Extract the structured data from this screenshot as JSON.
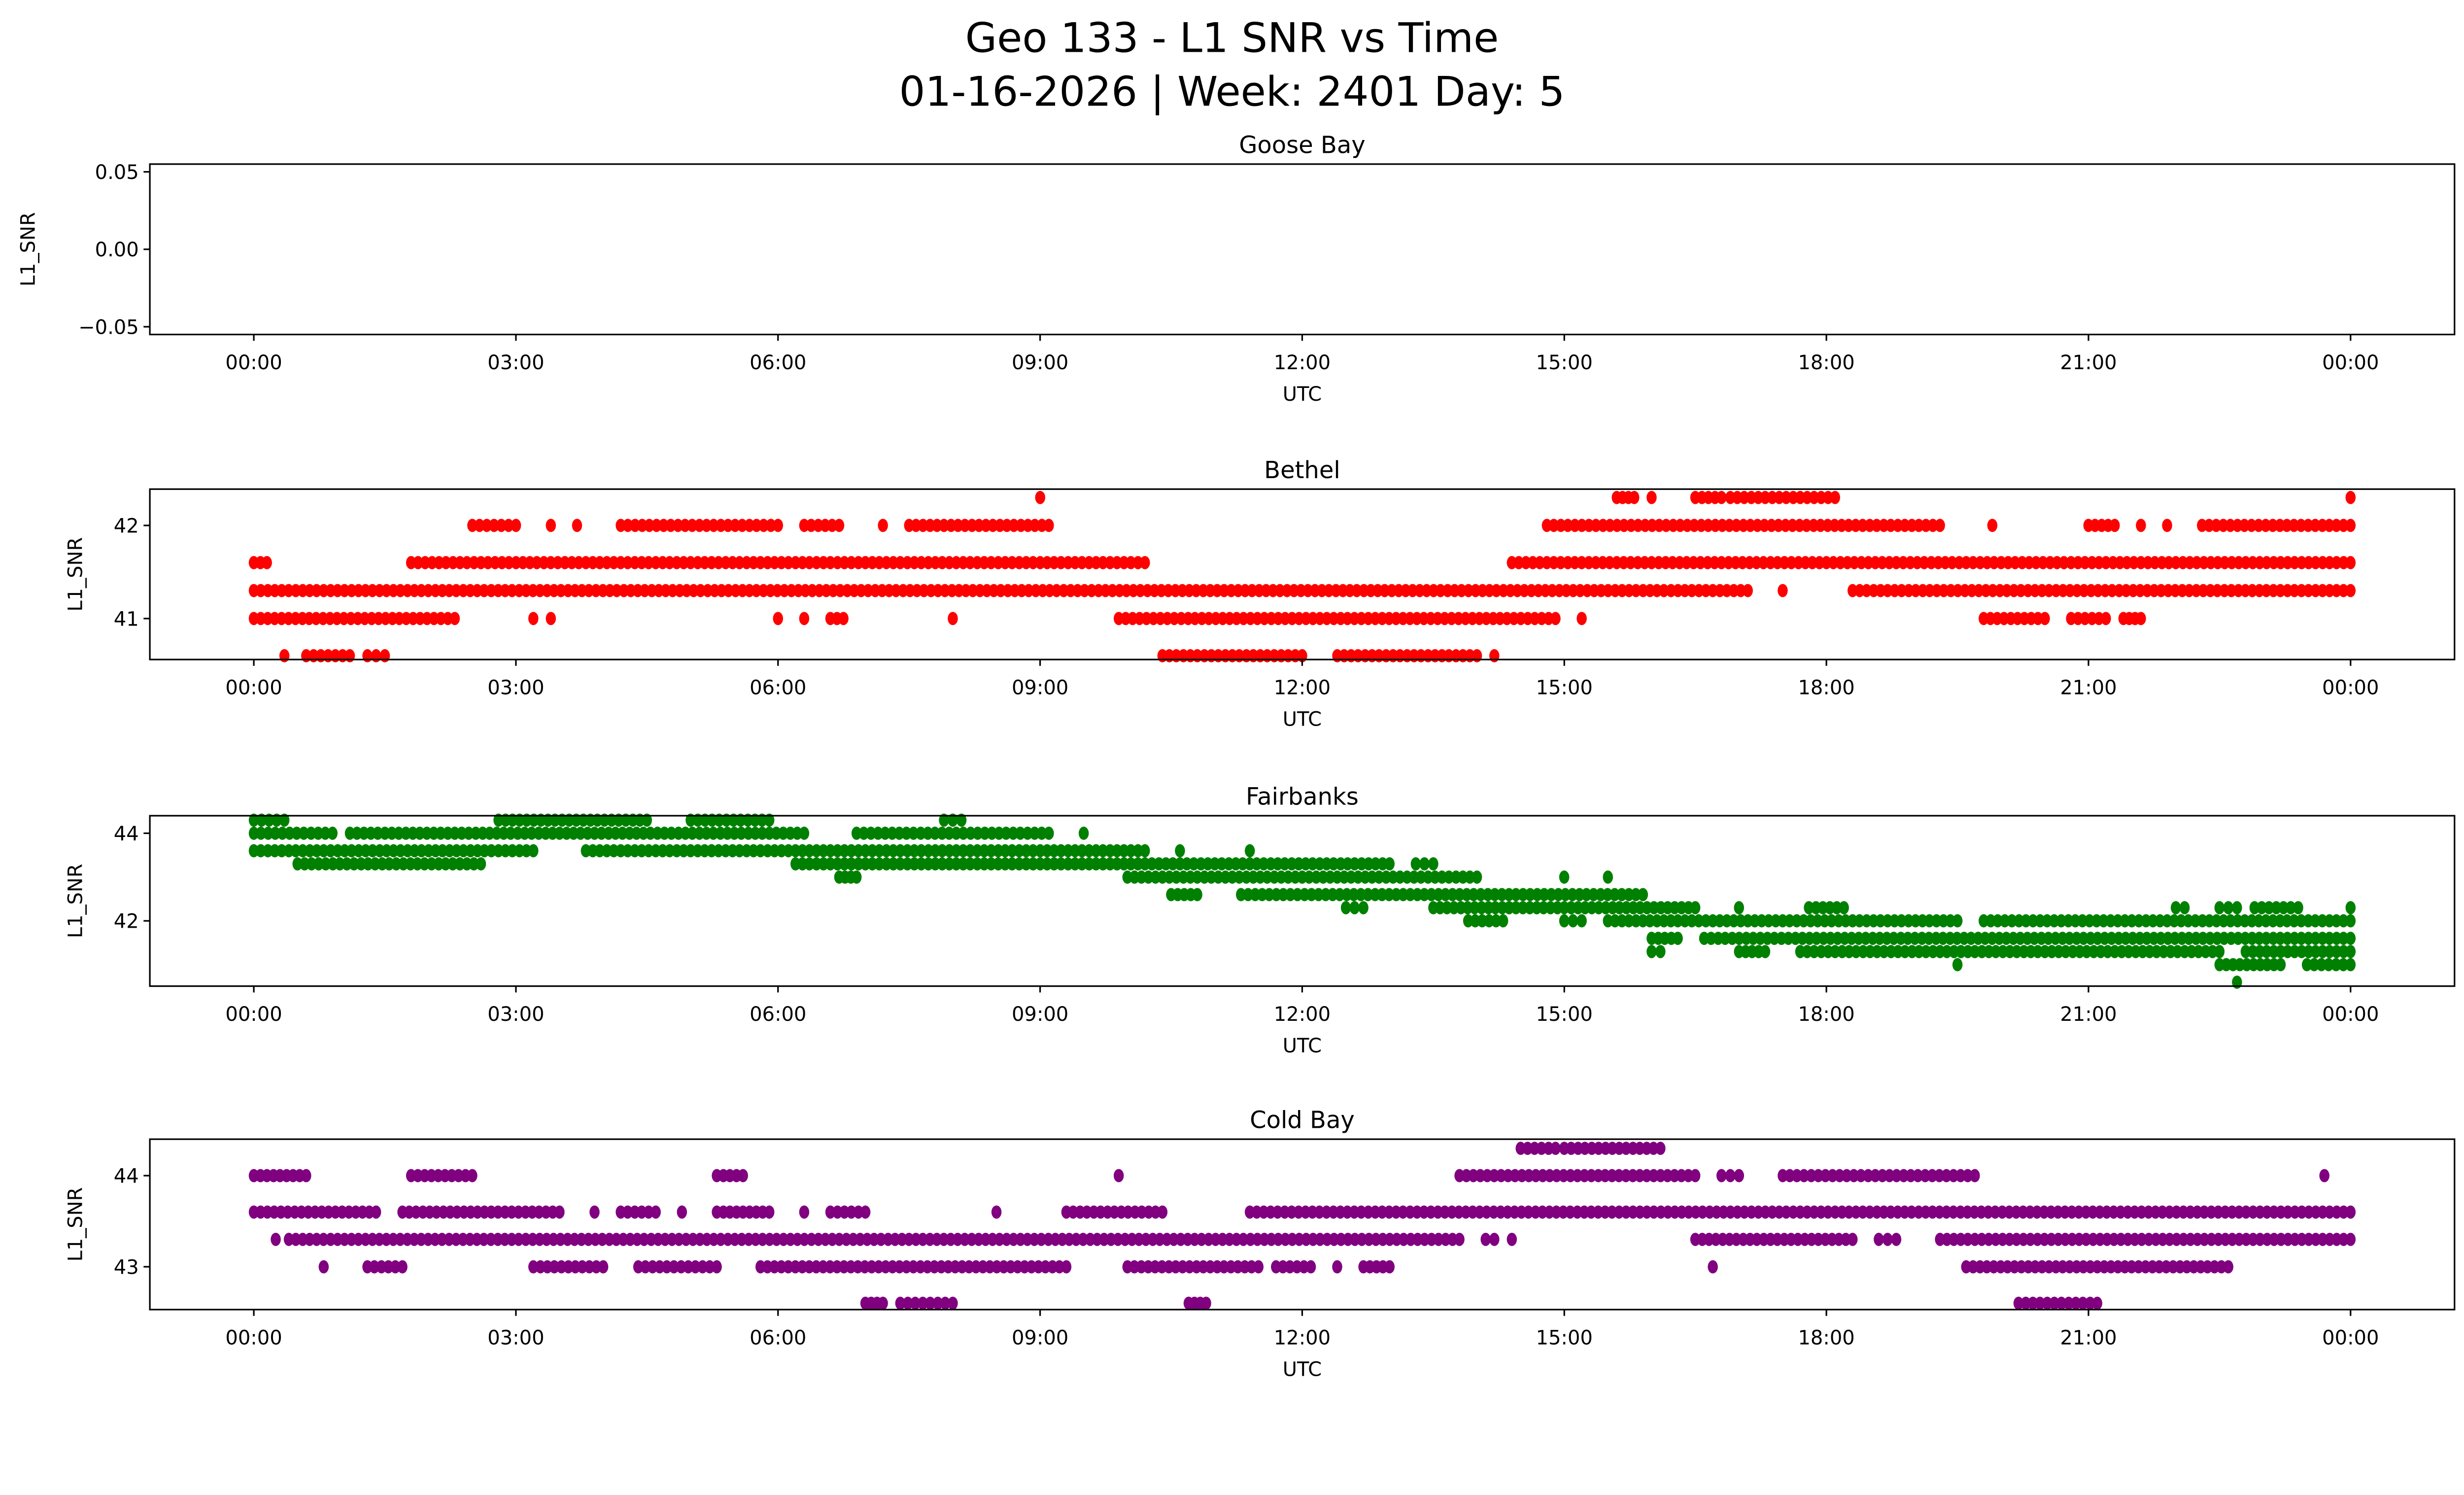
{
  "chart_data": {
    "type": "scatter",
    "title": "Geo 133 - L1 SNR vs Time",
    "subtitle": "01-16-2026 | Week: 2401 Day: 5",
    "xlabel": "UTC",
    "ylabel": "L1_SNR",
    "x_ticks": [
      "00:00",
      "03:00",
      "06:00",
      "09:00",
      "12:00",
      "15:00",
      "18:00",
      "21:00",
      "00:00"
    ],
    "x_tick_hours": [
      0,
      3,
      6,
      9,
      12,
      15,
      18,
      21,
      24
    ],
    "xlim_hours": [
      -1.19,
      25.19
    ],
    "grid": false,
    "panels": [
      {
        "title": "Goose Bay",
        "color": "#ff0000",
        "ylim": [
          -0.055,
          0.055
        ],
        "y_ticks": [
          0.05,
          0.0,
          -0.05
        ],
        "y_tick_labels": [
          "0.05",
          "0.00",
          "−0.05"
        ],
        "segments": []
      },
      {
        "title": "Bethel",
        "color": "#ff0000",
        "ylim": [
          40.56,
          42.39
        ],
        "y_ticks": [
          41,
          42
        ],
        "y_tick_labels": [
          "41",
          "42"
        ],
        "segments": [
          [
            0,
            2.3,
            41.0
          ],
          [
            3.2,
            3.2,
            41.0
          ],
          [
            3.4,
            3.4,
            41.0
          ],
          [
            6.0,
            6.0,
            41.0
          ],
          [
            6.3,
            6.3,
            41.0
          ],
          [
            6.6,
            6.75,
            41.0
          ],
          [
            8.0,
            8.0,
            41.0
          ],
          [
            9.9,
            14.9,
            41.0
          ],
          [
            15.2,
            15.2,
            41.0
          ],
          [
            19.8,
            20.5,
            41.0
          ],
          [
            20.8,
            21.2,
            41.0
          ],
          [
            21.4,
            21.6,
            41.0
          ],
          [
            0,
            17.1,
            41.3
          ],
          [
            17.5,
            17.5,
            41.3
          ],
          [
            18.3,
            24,
            41.3
          ],
          [
            0,
            0.15,
            41.6
          ],
          [
            1.8,
            10.2,
            41.6
          ],
          [
            14.4,
            24,
            41.6
          ],
          [
            2.5,
            3.0,
            42.0
          ],
          [
            3.4,
            3.4,
            42.0
          ],
          [
            3.7,
            3.7,
            42.0
          ],
          [
            4.2,
            6.0,
            42.0
          ],
          [
            6.3,
            6.7,
            42.0
          ],
          [
            7.2,
            7.2,
            42.0
          ],
          [
            7.5,
            9.1,
            42.0
          ],
          [
            14.8,
            19.3,
            42.0
          ],
          [
            19.9,
            19.9,
            42.0
          ],
          [
            21.0,
            21.3,
            42.0
          ],
          [
            21.6,
            21.6,
            42.0
          ],
          [
            21.9,
            21.9,
            42.0
          ],
          [
            22.3,
            24,
            42.0
          ],
          [
            9.0,
            9.0,
            42.3
          ],
          [
            15.6,
            15.8,
            42.3
          ],
          [
            16.0,
            16.0,
            42.3
          ],
          [
            16.5,
            16.8,
            42.3
          ],
          [
            16.9,
            18.1,
            42.3
          ],
          [
            24,
            24,
            42.3
          ],
          [
            0.35,
            0.35,
            40.6
          ],
          [
            0.6,
            1.1,
            40.6
          ],
          [
            1.3,
            1.5,
            40.6
          ],
          [
            10.4,
            12.0,
            40.6
          ],
          [
            12.4,
            14.0,
            40.6
          ],
          [
            14.2,
            14.2,
            40.6
          ]
        ]
      },
      {
        "title": "Fairbanks",
        "color": "#008000",
        "ylim": [
          40.51,
          44.4
        ],
        "y_ticks": [
          42,
          44
        ],
        "y_tick_labels": [
          "42",
          "44"
        ],
        "segments": [
          [
            0,
            0.35,
            44.3
          ],
          [
            2.8,
            4.5,
            44.3
          ],
          [
            5.0,
            5.9,
            44.3
          ],
          [
            7.9,
            8.1,
            44.3
          ],
          [
            0,
            0.9,
            44.0
          ],
          [
            1.1,
            6.3,
            44.0
          ],
          [
            6.9,
            9.1,
            44.0
          ],
          [
            9.5,
            9.5,
            44.0
          ],
          [
            0,
            3.2,
            43.6
          ],
          [
            3.8,
            10.2,
            43.6
          ],
          [
            10.6,
            10.6,
            43.6
          ],
          [
            11.4,
            11.4,
            43.6
          ],
          [
            0.5,
            2.6,
            43.3
          ],
          [
            6.2,
            13.0,
            43.3
          ],
          [
            13.3,
            13.5,
            43.3
          ],
          [
            6.7,
            6.9,
            43.0
          ],
          [
            10.0,
            14.0,
            43.0
          ],
          [
            15.0,
            15.0,
            43.0
          ],
          [
            15.5,
            15.5,
            43.0
          ],
          [
            10.5,
            10.8,
            42.6
          ],
          [
            11.3,
            15.9,
            42.6
          ],
          [
            12.5,
            12.7,
            42.3
          ],
          [
            13.5,
            16.5,
            42.3
          ],
          [
            17.0,
            17.0,
            42.3
          ],
          [
            17.8,
            18.2,
            42.3
          ],
          [
            22.0,
            22.1,
            42.3
          ],
          [
            22.5,
            22.7,
            42.3
          ],
          [
            22.9,
            23.4,
            42.3
          ],
          [
            24,
            24,
            42.3
          ],
          [
            13.9,
            14.3,
            42.0
          ],
          [
            15.0,
            15.2,
            42.0
          ],
          [
            15.5,
            19.5,
            42.0
          ],
          [
            19.8,
            24,
            42.0
          ],
          [
            16.0,
            16.3,
            41.6
          ],
          [
            16.6,
            24,
            41.6
          ],
          [
            16.0,
            16.1,
            41.3
          ],
          [
            17.0,
            17.3,
            41.3
          ],
          [
            17.7,
            22.5,
            41.3
          ],
          [
            22.8,
            24,
            41.3
          ],
          [
            19.5,
            19.5,
            41.0
          ],
          [
            22.5,
            23.2,
            41.0
          ],
          [
            23.5,
            24,
            41.0
          ],
          [
            22.7,
            22.7,
            40.6
          ]
        ]
      },
      {
        "title": "Cold Bay",
        "color": "#800080",
        "ylim": [
          42.53,
          44.4
        ],
        "y_ticks": [
          43,
          44
        ],
        "y_tick_labels": [
          "43",
          "44"
        ],
        "segments": [
          [
            14.5,
            14.9,
            44.3
          ],
          [
            15.0,
            16.1,
            44.3
          ],
          [
            0,
            0.6,
            44.0
          ],
          [
            1.8,
            2.5,
            44.0
          ],
          [
            5.3,
            5.6,
            44.0
          ],
          [
            9.9,
            9.9,
            44.0
          ],
          [
            13.8,
            16.5,
            44.0
          ],
          [
            16.8,
            17.0,
            44.0
          ],
          [
            17.5,
            19.7,
            44.0
          ],
          [
            23.7,
            23.7,
            44.0
          ],
          [
            0,
            1.4,
            43.6
          ],
          [
            1.7,
            3.5,
            43.6
          ],
          [
            3.9,
            3.9,
            43.6
          ],
          [
            4.2,
            4.6,
            43.6
          ],
          [
            4.9,
            4.9,
            43.6
          ],
          [
            5.3,
            5.9,
            43.6
          ],
          [
            6.3,
            6.3,
            43.6
          ],
          [
            6.6,
            7.0,
            43.6
          ],
          [
            8.5,
            8.5,
            43.6
          ],
          [
            9.3,
            10.4,
            43.6
          ],
          [
            11.4,
            24,
            43.6
          ],
          [
            0.25,
            0.25,
            43.3
          ],
          [
            0.4,
            13.8,
            43.3
          ],
          [
            14.1,
            14.2,
            43.3
          ],
          [
            14.4,
            14.4,
            43.3
          ],
          [
            16.5,
            18.3,
            43.3
          ],
          [
            18.6,
            18.8,
            43.3
          ],
          [
            19.3,
            24,
            43.3
          ],
          [
            0.8,
            0.8,
            43.0
          ],
          [
            1.3,
            1.7,
            43.0
          ],
          [
            3.2,
            4.0,
            43.0
          ],
          [
            4.4,
            5.3,
            43.0
          ],
          [
            5.8,
            9.3,
            43.0
          ],
          [
            10.0,
            11.5,
            43.0
          ],
          [
            11.7,
            12.1,
            43.0
          ],
          [
            12.4,
            12.4,
            43.0
          ],
          [
            12.7,
            13.0,
            43.0
          ],
          [
            16.7,
            16.7,
            43.0
          ],
          [
            19.6,
            22.6,
            43.0
          ],
          [
            7.0,
            7.2,
            42.6
          ],
          [
            7.4,
            8.0,
            42.6
          ],
          [
            10.7,
            10.9,
            42.6
          ],
          [
            20.2,
            21.1,
            42.6
          ]
        ]
      }
    ]
  }
}
